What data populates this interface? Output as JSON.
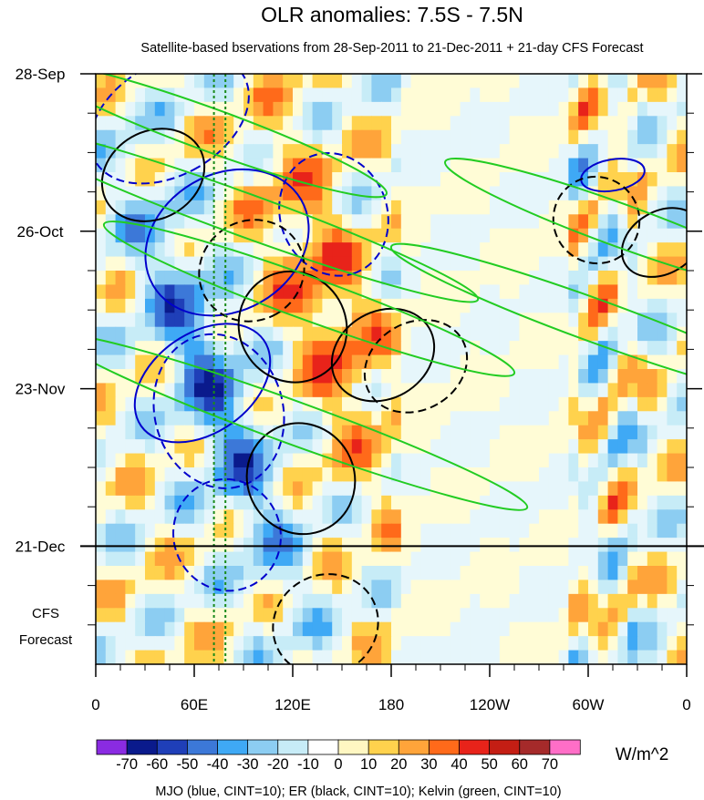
{
  "chart_data": {
    "type": "heatmap",
    "title": "OLR anomalies: 7.5S - 7.5N",
    "subtitle": "Satellite-based bservations from 28-Sep-2011 to 21-Dec-2011 + 21-day CFS Forecast",
    "x_tick_labels": [
      "0",
      "60E",
      "120E",
      "180",
      "120W",
      "60W",
      "0"
    ],
    "x_ticks_deg_east": [
      0,
      60,
      120,
      180,
      240,
      300,
      360
    ],
    "y_tick_labels": [
      "28-Sep",
      "26-Oct",
      "23-Nov",
      "21-Dec"
    ],
    "y_ticks_day": [
      0,
      28,
      56,
      84
    ],
    "y_range_day": [
      0,
      105
    ],
    "observation_end_label": "21-Dec",
    "forecast_label": [
      "CFS",
      "Forecast"
    ],
    "colorbar": {
      "labels": [
        "-70",
        "-60",
        "-50",
        "-40",
        "-30",
        "-20",
        "-10",
        "0",
        "10",
        "20",
        "30",
        "40",
        "50",
        "60",
        "70"
      ],
      "colors": [
        "#8a2be2",
        "#0a1a8c",
        "#1f3fb8",
        "#3c78d8",
        "#3fa9f5",
        "#8ccdf2",
        "#c7ecf7",
        "#ffffff",
        "#fff7c2",
        "#ffd24d",
        "#ffa43a",
        "#ff6a1a",
        "#e8231a",
        "#c41e14",
        "#a52a2a",
        "#ff6ec7"
      ],
      "unit": "W/m^2"
    },
    "footer": "MJO (blue, CINT=10); ER (black, CINT=10); Kelvin (green, CINT=10)",
    "reference_longitudes_deg_east": [
      72,
      79
    ],
    "series": [
      {
        "color": "#0000cc",
        "anomalies": [
          {
            "lon": 45,
            "day": 8,
            "a": 18,
            "b": 8,
            "angle": 60,
            "dashed": true
          },
          {
            "lon": 80,
            "day": 30,
            "a": 22,
            "b": 8,
            "angle": 60,
            "dashed": false
          },
          {
            "lon": 65,
            "day": 55,
            "a": 16,
            "b": 7,
            "angle": 55,
            "dashed": false
          },
          {
            "lon": 75,
            "day": 60,
            "a": 25,
            "b": 6,
            "angle": 75,
            "dashed": true
          },
          {
            "lon": 145,
            "day": 25,
            "a": 20,
            "b": 5,
            "angle": 70,
            "dashed": true
          },
          {
            "lon": 80,
            "day": 82,
            "a": 18,
            "b": 5,
            "angle": 70,
            "dashed": true
          },
          {
            "lon": 315,
            "day": 18,
            "a": 5,
            "b": 3,
            "angle": 80,
            "dashed": false
          }
        ]
      },
      {
        "color": "#000000",
        "anomalies": [
          {
            "lon": 35,
            "day": 18,
            "a": 14,
            "b": 5,
            "angle": 60,
            "dashed": false
          },
          {
            "lon": 95,
            "day": 35,
            "a": 16,
            "b": 5,
            "angle": 60,
            "dashed": true
          },
          {
            "lon": 120,
            "day": 45,
            "a": 18,
            "b": 5,
            "angle": 60,
            "dashed": false
          },
          {
            "lon": 175,
            "day": 50,
            "a": 14,
            "b": 5,
            "angle": 60,
            "dashed": false
          },
          {
            "lon": 195,
            "day": 52,
            "a": 14,
            "b": 5,
            "angle": 60,
            "dashed": true
          },
          {
            "lon": 125,
            "day": 72,
            "a": 18,
            "b": 5,
            "angle": 60,
            "dashed": false
          },
          {
            "lon": 140,
            "day": 98,
            "a": 16,
            "b": 5,
            "angle": 60,
            "dashed": true
          },
          {
            "lon": 345,
            "day": 30,
            "a": 10,
            "b": 4,
            "angle": 60,
            "dashed": false
          },
          {
            "lon": 305,
            "day": 26,
            "a": 14,
            "b": 4,
            "angle": 55,
            "dashed": true
          }
        ]
      },
      {
        "color": "#22cc22",
        "anomalies": [
          {
            "lon": 70,
            "day": 10,
            "a": 60,
            "b": 2,
            "angle": 20,
            "dashed": false
          },
          {
            "lon": 90,
            "day": 25,
            "a": 80,
            "b": 2,
            "angle": 20,
            "dashed": false
          },
          {
            "lon": 130,
            "day": 40,
            "a": 70,
            "b": 2,
            "angle": 20,
            "dashed": false
          },
          {
            "lon": 120,
            "day": 62,
            "a": 80,
            "b": 2,
            "angle": 20,
            "dashed": false
          },
          {
            "lon": 305,
            "day": 44,
            "a": 70,
            "b": 2,
            "angle": 20,
            "dashed": false
          },
          {
            "lon": 320,
            "day": 27,
            "a": 60,
            "b": 2,
            "angle": 20,
            "dashed": false
          }
        ]
      }
    ]
  }
}
